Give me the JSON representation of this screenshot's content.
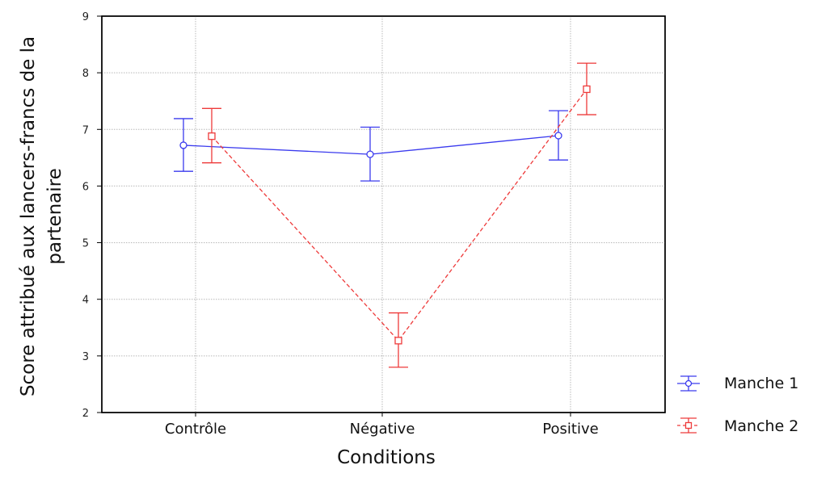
{
  "chart_data": {
    "type": "line",
    "title": "",
    "xlabel": "Conditions",
    "ylabel": [
      "Score attribué aux lancers-francs de la",
      "partenaire"
    ],
    "categories": [
      "Contrôle",
      "Négative",
      "Positive"
    ],
    "ylim": [
      2,
      9
    ],
    "yticks": [
      2,
      3,
      4,
      5,
      6,
      7,
      8,
      9
    ],
    "grid": true,
    "legend_position": "bottom-right",
    "series": [
      {
        "name": "Manche 1",
        "color": "#3a3aee",
        "line_style": "solid",
        "marker": "circle",
        "values": [
          6.72,
          6.56,
          6.89
        ],
        "error_low": [
          6.26,
          6.09,
          6.46
        ],
        "error_high": [
          7.19,
          7.04,
          7.33
        ]
      },
      {
        "name": "Manche 2",
        "color": "#ee3a3a",
        "line_style": "dashed",
        "marker": "square",
        "values": [
          6.88,
          3.27,
          7.71
        ],
        "error_low": [
          6.41,
          2.8,
          7.26
        ],
        "error_high": [
          7.37,
          3.76,
          8.17
        ]
      }
    ]
  }
}
